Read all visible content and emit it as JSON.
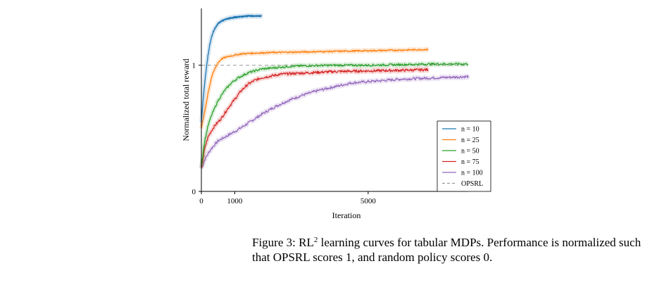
{
  "chart_data": {
    "type": "line",
    "xlabel": "Iteration",
    "ylabel": "Normalized total reward",
    "xlim": [
      0,
      8000
    ],
    "ylim": [
      0,
      1.45
    ],
    "xticks": [
      "0",
      "1000",
      "5000"
    ],
    "xtick_values": [
      0,
      1000,
      5000
    ],
    "yticks": [
      "0",
      "1"
    ],
    "ytick_values": [
      0,
      1
    ],
    "grid": false,
    "legend_position": "lower-right",
    "reference_line": {
      "name": "OPSRL",
      "value": 1,
      "style": "dashed",
      "color": "#999999"
    },
    "series": [
      {
        "name": "n = 10",
        "color": "#1f77b4",
        "noise": 0.006,
        "x": [
          0,
          50,
          100,
          150,
          200,
          250,
          300,
          350,
          400,
          500,
          600,
          700,
          800,
          1000,
          1200,
          1400,
          1600,
          1800
        ],
        "y": [
          0.55,
          0.72,
          0.86,
          0.98,
          1.08,
          1.16,
          1.22,
          1.26,
          1.29,
          1.33,
          1.35,
          1.36,
          1.37,
          1.38,
          1.385,
          1.39,
          1.39,
          1.39
        ]
      },
      {
        "name": "n = 25",
        "color": "#ff7f0e",
        "noise": 0.006,
        "x": [
          0,
          100,
          200,
          300,
          400,
          500,
          600,
          800,
          1000,
          1200,
          1500,
          2000,
          3000,
          4000,
          5000,
          6000,
          6800
        ],
        "y": [
          0.5,
          0.63,
          0.78,
          0.9,
          0.97,
          1.02,
          1.05,
          1.07,
          1.08,
          1.09,
          1.095,
          1.1,
          1.105,
          1.11,
          1.115,
          1.12,
          1.125
        ]
      },
      {
        "name": "n = 50",
        "color": "#2ca02c",
        "noise": 0.008,
        "x": [
          0,
          100,
          200,
          300,
          400,
          500,
          700,
          900,
          1100,
          1400,
          1800,
          2200,
          2600,
          3000,
          4000,
          5000,
          6000,
          7000,
          8000
        ],
        "y": [
          0.2,
          0.4,
          0.52,
          0.6,
          0.66,
          0.72,
          0.8,
          0.86,
          0.9,
          0.94,
          0.97,
          0.98,
          0.99,
          0.995,
          1.0,
          1.0,
          1.005,
          1.01,
          1.01
        ]
      },
      {
        "name": "n = 75",
        "color": "#d62728",
        "noise": 0.01,
        "x": [
          0,
          100,
          200,
          300,
          400,
          500,
          600,
          700,
          800,
          1000,
          1200,
          1400,
          1600,
          1800,
          2000,
          2400,
          2800,
          3200,
          4000,
          5000,
          6000,
          6800
        ],
        "y": [
          0.18,
          0.34,
          0.43,
          0.48,
          0.52,
          0.55,
          0.58,
          0.62,
          0.66,
          0.73,
          0.8,
          0.85,
          0.88,
          0.9,
          0.91,
          0.93,
          0.935,
          0.94,
          0.95,
          0.955,
          0.96,
          0.965
        ]
      },
      {
        "name": "n = 100",
        "color": "#9467bd",
        "noise": 0.01,
        "x": [
          0,
          100,
          200,
          300,
          400,
          500,
          700,
          900,
          1100,
          1400,
          1800,
          2200,
          2600,
          3000,
          3500,
          4000,
          4500,
          5000,
          6000,
          7000,
          8000
        ],
        "y": [
          0.18,
          0.25,
          0.3,
          0.34,
          0.37,
          0.4,
          0.43,
          0.46,
          0.49,
          0.54,
          0.61,
          0.67,
          0.72,
          0.76,
          0.8,
          0.83,
          0.86,
          0.87,
          0.89,
          0.9,
          0.91
        ]
      }
    ]
  },
  "caption": {
    "prefix": "Figure 3: RL",
    "superscript": "2",
    "text": " learning curves for tabular MDPs.  Performance is normalized such that OPSRL scores 1, and random policy scores 0."
  }
}
